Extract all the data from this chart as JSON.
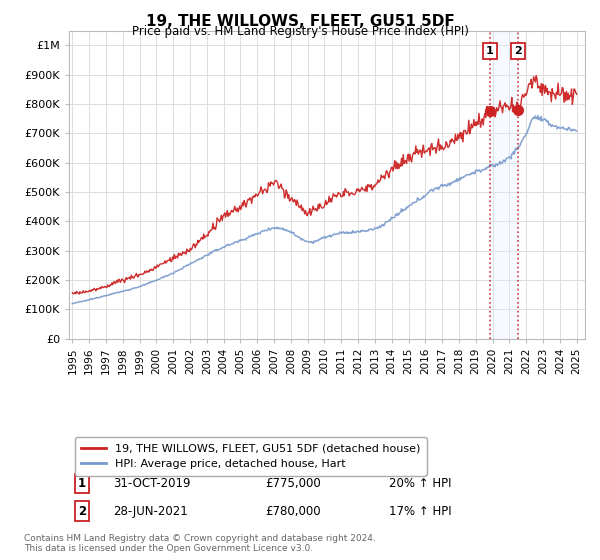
{
  "title": "19, THE WILLOWS, FLEET, GU51 5DF",
  "subtitle": "Price paid vs. HM Land Registry's House Price Index (HPI)",
  "ylabel_ticks": [
    "£0",
    "£100K",
    "£200K",
    "£300K",
    "£400K",
    "£500K",
    "£600K",
    "£700K",
    "£800K",
    "£900K",
    "£1M"
  ],
  "ytick_values": [
    0,
    100000,
    200000,
    300000,
    400000,
    500000,
    600000,
    700000,
    800000,
    900000,
    1000000
  ],
  "ylim": [
    0,
    1050000
  ],
  "xlim_start": 1994.8,
  "xlim_end": 2025.5,
  "legend_line1": "19, THE WILLOWS, FLEET, GU51 5DF (detached house)",
  "legend_line2": "HPI: Average price, detached house, Hart",
  "transaction1_label": "1",
  "transaction1_date": "31-OCT-2019",
  "transaction1_price": "£775,000",
  "transaction1_hpi": "20% ↑ HPI",
  "transaction2_label": "2",
  "transaction2_date": "28-JUN-2021",
  "transaction2_price": "£780,000",
  "transaction2_hpi": "17% ↑ HPI",
  "footer": "Contains HM Land Registry data © Crown copyright and database right 2024.\nThis data is licensed under the Open Government Licence v3.0.",
  "line1_color": "#cc2222",
  "line2_color": "#7799cc",
  "marker_color": "#cc2222",
  "vline_color": "#cc2222",
  "shade_color": "#ddeeff",
  "background_color": "#ffffff",
  "grid_color": "#dddddd",
  "transaction1_x": 2019.83,
  "transaction2_x": 2021.49,
  "transaction1_y": 775000,
  "transaction2_y": 780000,
  "figsize": [
    6.0,
    5.6
  ],
  "dpi": 100
}
